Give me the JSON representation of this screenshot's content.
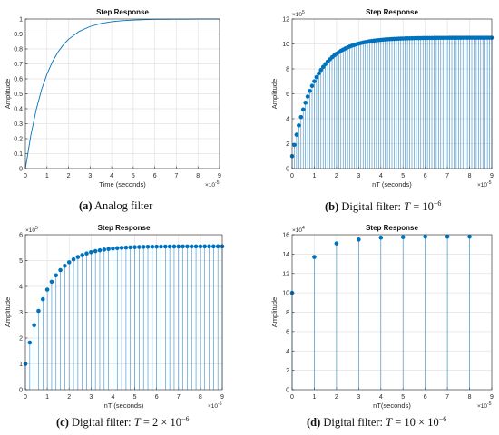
{
  "chart_data": [
    {
      "type": "line",
      "title": "Step Response",
      "xlabel": "Time (seconds)",
      "ylabel": "Amplitude",
      "xlim": [
        0,
        9
      ],
      "ylim": [
        0,
        1
      ],
      "x_multiplier": "×10",
      "x_multiplier_exp": "-5",
      "y_multiplier": "",
      "y_multiplier_exp": "",
      "xticks": [
        "0",
        "1",
        "2",
        "3",
        "4",
        "5",
        "6",
        "7",
        "8",
        "9"
      ],
      "yticks": [
        "0",
        "0.1",
        "0.2",
        "0.3",
        "0.4",
        "0.5",
        "0.6",
        "0.7",
        "0.8",
        "0.9",
        "1"
      ],
      "grid": true,
      "color": "#0072BD",
      "tau": 1.0,
      "x": [
        0,
        0.25,
        0.5,
        0.75,
        1,
        1.25,
        1.5,
        1.75,
        2,
        2.5,
        3,
        3.5,
        4,
        4.5,
        5,
        5.5,
        6,
        6.5,
        7,
        7.5,
        8,
        8.5,
        9
      ],
      "y": [
        0,
        0.221,
        0.393,
        0.528,
        0.632,
        0.713,
        0.777,
        0.826,
        0.865,
        0.918,
        0.95,
        0.97,
        0.982,
        0.989,
        0.993,
        0.996,
        0.998,
        0.998,
        0.999,
        0.999,
        1.0,
        1.0,
        1.0
      ],
      "caption_label": "(a)",
      "caption_text": "Analog filter"
    },
    {
      "type": "stem",
      "title": "Step Response",
      "xlabel": "nT (seconds)",
      "ylabel": "Amplitude",
      "xlim": [
        0,
        9
      ],
      "ylim": [
        0,
        12
      ],
      "x_multiplier": "×10",
      "x_multiplier_exp": "-5",
      "y_multiplier": "×10",
      "y_multiplier_exp": "5",
      "xticks": [
        "0",
        "1",
        "2",
        "3",
        "4",
        "5",
        "6",
        "7",
        "8",
        "9"
      ],
      "yticks": [
        "0",
        "2",
        "4",
        "6",
        "8",
        "10",
        "12"
      ],
      "grid": true,
      "color": "#0072BD",
      "step": 0.1,
      "final": 10.5,
      "first": 1.0,
      "tau": 1.0,
      "caption_label": "(b)",
      "caption_text": "Digital filter: ",
      "caption_T": "T",
      "caption_eq": " = 10",
      "caption_exp": "−6"
    },
    {
      "type": "stem",
      "title": "Step Response",
      "xlabel": "nT (seconds)",
      "ylabel": "Amplitude",
      "xlim": [
        0,
        9
      ],
      "ylim": [
        0,
        6
      ],
      "x_multiplier": "×10",
      "x_multiplier_exp": "-5",
      "y_multiplier": "×10",
      "y_multiplier_exp": "5",
      "xticks": [
        "0",
        "1",
        "2",
        "3",
        "4",
        "5",
        "6",
        "7",
        "8",
        "9"
      ],
      "yticks": [
        "0",
        "1",
        "2",
        "3",
        "4",
        "5",
        "6"
      ],
      "grid": true,
      "color": "#0072BD",
      "step": 0.2,
      "final": 5.55,
      "first": 1.0,
      "tau": 1.0,
      "caption_label": "(c)",
      "caption_text": "Digital filter: ",
      "caption_T": "T",
      "caption_eq": " = 2 × 10",
      "caption_exp": "−6"
    },
    {
      "type": "stem",
      "title": "Step Response",
      "xlabel": "nT(seconds)",
      "ylabel": "Amplitude",
      "xlim": [
        0,
        9
      ],
      "ylim": [
        0,
        16
      ],
      "x_multiplier": "×10",
      "x_multiplier_exp": "-5",
      "y_multiplier": "×10",
      "y_multiplier_exp": "4",
      "xticks": [
        "0",
        "1",
        "2",
        "3",
        "4",
        "5",
        "6",
        "7",
        "8",
        "9"
      ],
      "yticks": [
        "0",
        "2",
        "4",
        "6",
        "8",
        "10",
        "12",
        "14",
        "16"
      ],
      "grid": true,
      "color": "#0072BD",
      "x": [
        0,
        1,
        2,
        3,
        4,
        5,
        6,
        7,
        8
      ],
      "y": [
        10.0,
        13.7,
        15.1,
        15.5,
        15.7,
        15.75,
        15.8,
        15.8,
        15.8
      ],
      "caption_label": "(d)",
      "caption_text": "Digital filter: ",
      "caption_T": "T",
      "caption_eq": " = 10 × 10",
      "caption_exp": "−6"
    }
  ]
}
